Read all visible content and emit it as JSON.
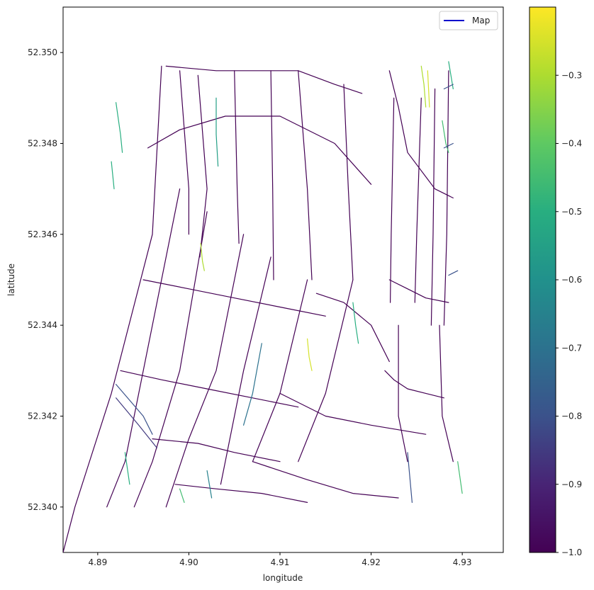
{
  "chart_data": {
    "type": "line",
    "xlabel": "longitude",
    "ylabel": "latitude",
    "xlim": [
      4.8862,
      4.9345
    ],
    "ylim": [
      52.339,
      52.351
    ],
    "xticks": [
      "4.89",
      "4.90",
      "4.91",
      "4.92",
      "4.93"
    ],
    "yticks": [
      "52.340",
      "52.342",
      "52.344",
      "52.346",
      "52.348",
      "52.350"
    ],
    "legend": {
      "label": "Map",
      "placement": "top-right",
      "color": "#0000cc"
    },
    "colorbar": {
      "colormap": "viridis",
      "range": [
        -1.0,
        -0.2
      ],
      "ticks": [
        "-1.0",
        "-0.9",
        "-0.8",
        "-0.7",
        "-0.6",
        "-0.5",
        "-0.4",
        "-0.3"
      ]
    },
    "segments": [
      {
        "x": [
          4.8975,
          4.903,
          4.912,
          4.916,
          4.919
        ],
        "y": [
          52.3497,
          52.3496,
          52.3496,
          52.3493,
          52.3491
        ],
        "v": -1
      },
      {
        "x": [
          4.8955,
          4.899,
          4.904,
          4.91,
          4.916,
          4.92
        ],
        "y": [
          52.3479,
          52.3483,
          52.3486,
          52.3486,
          52.348,
          52.3471
        ],
        "v": -1
      },
      {
        "x": [
          4.897,
          4.896,
          4.8915,
          4.8875,
          4.8862
        ],
        "y": [
          52.3497,
          52.346,
          52.3425,
          52.34,
          52.339
        ],
        "v": -1
      },
      {
        "x": [
          4.899,
          4.9,
          4.9
        ],
        "y": [
          52.3496,
          52.347,
          52.346
        ],
        "v": -1
      },
      {
        "x": [
          4.901,
          4.902,
          4.9012
        ],
        "y": [
          52.3495,
          52.347,
          52.3455
        ],
        "v": -1
      },
      {
        "x": [
          4.905,
          4.9053,
          4.9055
        ],
        "y": [
          52.3496,
          52.347,
          52.3458
        ],
        "v": -1
      },
      {
        "x": [
          4.909,
          4.9092,
          4.9093
        ],
        "y": [
          52.3496,
          52.347,
          52.345
        ],
        "v": -1
      },
      {
        "x": [
          4.912,
          4.913,
          4.9135
        ],
        "y": [
          52.3496,
          52.347,
          52.345
        ],
        "v": -1
      },
      {
        "x": [
          4.917,
          4.9175,
          4.918
        ],
        "y": [
          52.3493,
          52.347,
          52.345
        ],
        "v": -1
      },
      {
        "x": [
          4.899,
          4.896,
          4.893,
          4.891
        ],
        "y": [
          52.347,
          52.344,
          52.341,
          52.34
        ],
        "v": -1
      },
      {
        "x": [
          4.902,
          4.899,
          4.896,
          4.894
        ],
        "y": [
          52.3465,
          52.343,
          52.341,
          52.34
        ],
        "v": -1
      },
      {
        "x": [
          4.906,
          4.903,
          4.9,
          4.8975
        ],
        "y": [
          52.346,
          52.343,
          52.3415,
          52.34
        ],
        "v": -1
      },
      {
        "x": [
          4.909,
          4.906,
          4.9035
        ],
        "y": [
          52.3455,
          52.343,
          52.3405
        ],
        "v": -1
      },
      {
        "x": [
          4.913,
          4.91,
          4.907
        ],
        "y": [
          52.345,
          52.3425,
          52.341
        ],
        "v": -1
      },
      {
        "x": [
          4.918,
          4.915,
          4.912
        ],
        "y": [
          52.345,
          52.3425,
          52.341
        ],
        "v": -1
      },
      {
        "x": [
          4.895,
          4.9,
          4.905,
          4.91,
          4.915
        ],
        "y": [
          52.345,
          52.3448,
          52.3446,
          52.3444,
          52.3442
        ],
        "v": -1
      },
      {
        "x": [
          4.8925,
          4.897,
          4.902,
          4.907,
          4.912
        ],
        "y": [
          52.343,
          52.3428,
          52.3426,
          52.3424,
          52.3422
        ],
        "v": -1
      },
      {
        "x": [
          4.922,
          4.923,
          4.924,
          4.927,
          4.929
        ],
        "y": [
          52.3496,
          52.3488,
          52.3478,
          52.347,
          52.3468
        ],
        "v": -1
      },
      {
        "x": [
          4.9225,
          4.9222,
          4.9221
        ],
        "y": [
          52.349,
          52.346,
          52.3445
        ],
        "v": -1
      },
      {
        "x": [
          4.9255,
          4.925,
          4.9248
        ],
        "y": [
          52.349,
          52.346,
          52.3445
        ],
        "v": -1
      },
      {
        "x": [
          4.927,
          4.9268,
          4.9266
        ],
        "y": [
          52.3492,
          52.346,
          52.344
        ],
        "v": -1
      },
      {
        "x": [
          4.9285,
          4.9283,
          4.928
        ],
        "y": [
          52.3496,
          52.346,
          52.344
        ],
        "v": -1
      },
      {
        "x": [
          4.922,
          4.924,
          4.926,
          4.9285
        ],
        "y": [
          52.345,
          52.3448,
          52.3446,
          52.3445
        ],
        "v": -1
      },
      {
        "x": [
          4.923,
          4.923,
          4.924
        ],
        "y": [
          52.344,
          52.342,
          52.341
        ],
        "v": -1
      },
      {
        "x": [
          4.9215,
          4.9225,
          4.924,
          4.926,
          4.928
        ],
        "y": [
          52.343,
          52.3428,
          52.3426,
          52.3425,
          52.3424
        ],
        "v": -1
      },
      {
        "x": [
          4.9275,
          4.9278,
          4.929
        ],
        "y": [
          52.344,
          52.342,
          52.341
        ],
        "v": -1
      },
      {
        "x": [
          4.896,
          4.901,
          4.905,
          4.91
        ],
        "y": [
          52.3415,
          52.3414,
          52.3412,
          52.341
        ],
        "v": -1
      },
      {
        "x": [
          4.8985,
          4.903,
          4.908,
          4.913
        ],
        "y": [
          52.3405,
          52.3404,
          52.3403,
          52.3401
        ],
        "v": -1
      },
      {
        "x": [
          4.91,
          4.915,
          4.92,
          4.926
        ],
        "y": [
          52.3425,
          52.342,
          52.3418,
          52.3416
        ],
        "v": -1
      },
      {
        "x": [
          4.907,
          4.913,
          4.918,
          4.923
        ],
        "y": [
          52.341,
          52.3406,
          52.3403,
          52.3402
        ],
        "v": -1
      },
      {
        "x": [
          4.914,
          4.917,
          4.92,
          4.922
        ],
        "y": [
          52.3447,
          52.3445,
          52.344,
          52.3432
        ],
        "v": -1
      },
      {
        "x": [
          4.903,
          4.903,
          4.9032
        ],
        "y": [
          52.349,
          52.3482,
          52.3475
        ],
        "v": -0.55
      },
      {
        "x": [
          4.892,
          4.8925,
          4.8927
        ],
        "y": [
          52.3489,
          52.3482,
          52.3478
        ],
        "v": -0.5
      },
      {
        "x": [
          4.8915,
          4.8918
        ],
        "y": [
          52.3476,
          52.347
        ],
        "v": -0.5
      },
      {
        "x": [
          4.9255,
          4.9258,
          4.926
        ],
        "y": [
          52.3497,
          52.3493,
          52.3488
        ],
        "v": -0.3
      },
      {
        "x": [
          4.9262,
          4.9264
        ],
        "y": [
          52.3496,
          52.3488
        ],
        "v": -0.25
      },
      {
        "x": [
          4.9278,
          4.9282,
          4.9285
        ],
        "y": [
          52.3485,
          52.348,
          52.3478
        ],
        "v": -0.45
      },
      {
        "x": [
          4.9285,
          4.929
        ],
        "y": [
          52.3498,
          52.3492
        ],
        "v": -0.5
      },
      {
        "x": [
          4.9013,
          4.9015,
          4.9017
        ],
        "y": [
          52.3458,
          52.3454,
          52.3452
        ],
        "v": -0.3
      },
      {
        "x": [
          4.913,
          4.9132,
          4.9135
        ],
        "y": [
          52.3437,
          52.3433,
          52.343
        ],
        "v": -0.25
      },
      {
        "x": [
          4.918,
          4.9183,
          4.9186
        ],
        "y": [
          52.3445,
          52.344,
          52.3436
        ],
        "v": -0.5
      },
      {
        "x": [
          4.908,
          4.907,
          4.906
        ],
        "y": [
          52.3436,
          52.3425,
          52.3418
        ],
        "v": -0.7
      },
      {
        "x": [
          4.893,
          4.8935
        ],
        "y": [
          52.3412,
          52.3405
        ],
        "v": -0.5
      },
      {
        "x": [
          4.899,
          4.8995
        ],
        "y": [
          52.3404,
          52.3401
        ],
        "v": -0.45
      },
      {
        "x": [
          4.902,
          4.9025
        ],
        "y": [
          52.3408,
          52.3402
        ],
        "v": -0.65
      },
      {
        "x": [
          4.9295,
          4.93
        ],
        "y": [
          52.341,
          52.3403
        ],
        "v": -0.45
      },
      {
        "x": [
          4.924,
          4.9245
        ],
        "y": [
          52.3412,
          52.3401
        ],
        "v": -0.8
      },
      {
        "x": [
          4.892,
          4.895,
          4.896
        ],
        "y": [
          52.3427,
          52.342,
          52.3416
        ],
        "v": -0.8
      },
      {
        "x": [
          4.892,
          4.8945,
          4.8965
        ],
        "y": [
          52.3424,
          52.3418,
          52.3413
        ],
        "v": -0.85
      },
      {
        "x": [
          4.9285,
          4.9295
        ],
        "y": [
          52.3451,
          52.3452
        ],
        "v": -0.8
      },
      {
        "x": [
          4.928,
          4.929
        ],
        "y": [
          52.3479,
          52.348
        ],
        "v": -0.8
      },
      {
        "x": [
          4.928,
          4.929
        ],
        "y": [
          52.3492,
          52.3493
        ],
        "v": -0.8
      }
    ]
  }
}
